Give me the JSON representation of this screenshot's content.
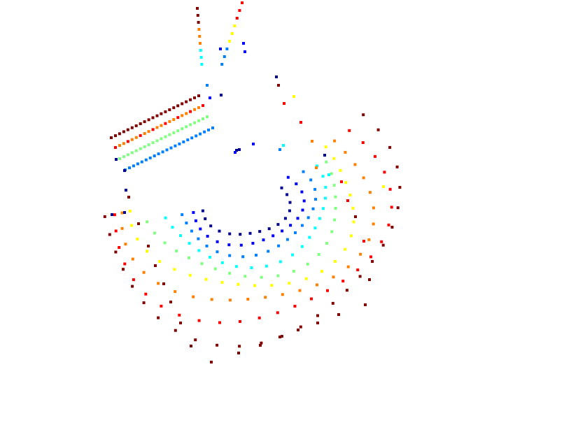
{
  "figure": {
    "kind": "scatter of small square points colored by a jet colormap",
    "background": "#ffffff",
    "marker_shape": "square",
    "colormap": [
      "#00008f",
      "#0000ff",
      "#0080ff",
      "#00ffff",
      "#80ff80",
      "#ffff00",
      "#ff8000",
      "#ff0000",
      "#800000"
    ],
    "rings_visible": 8,
    "axes_shown": false,
    "grid": false,
    "legend": false
  }
}
